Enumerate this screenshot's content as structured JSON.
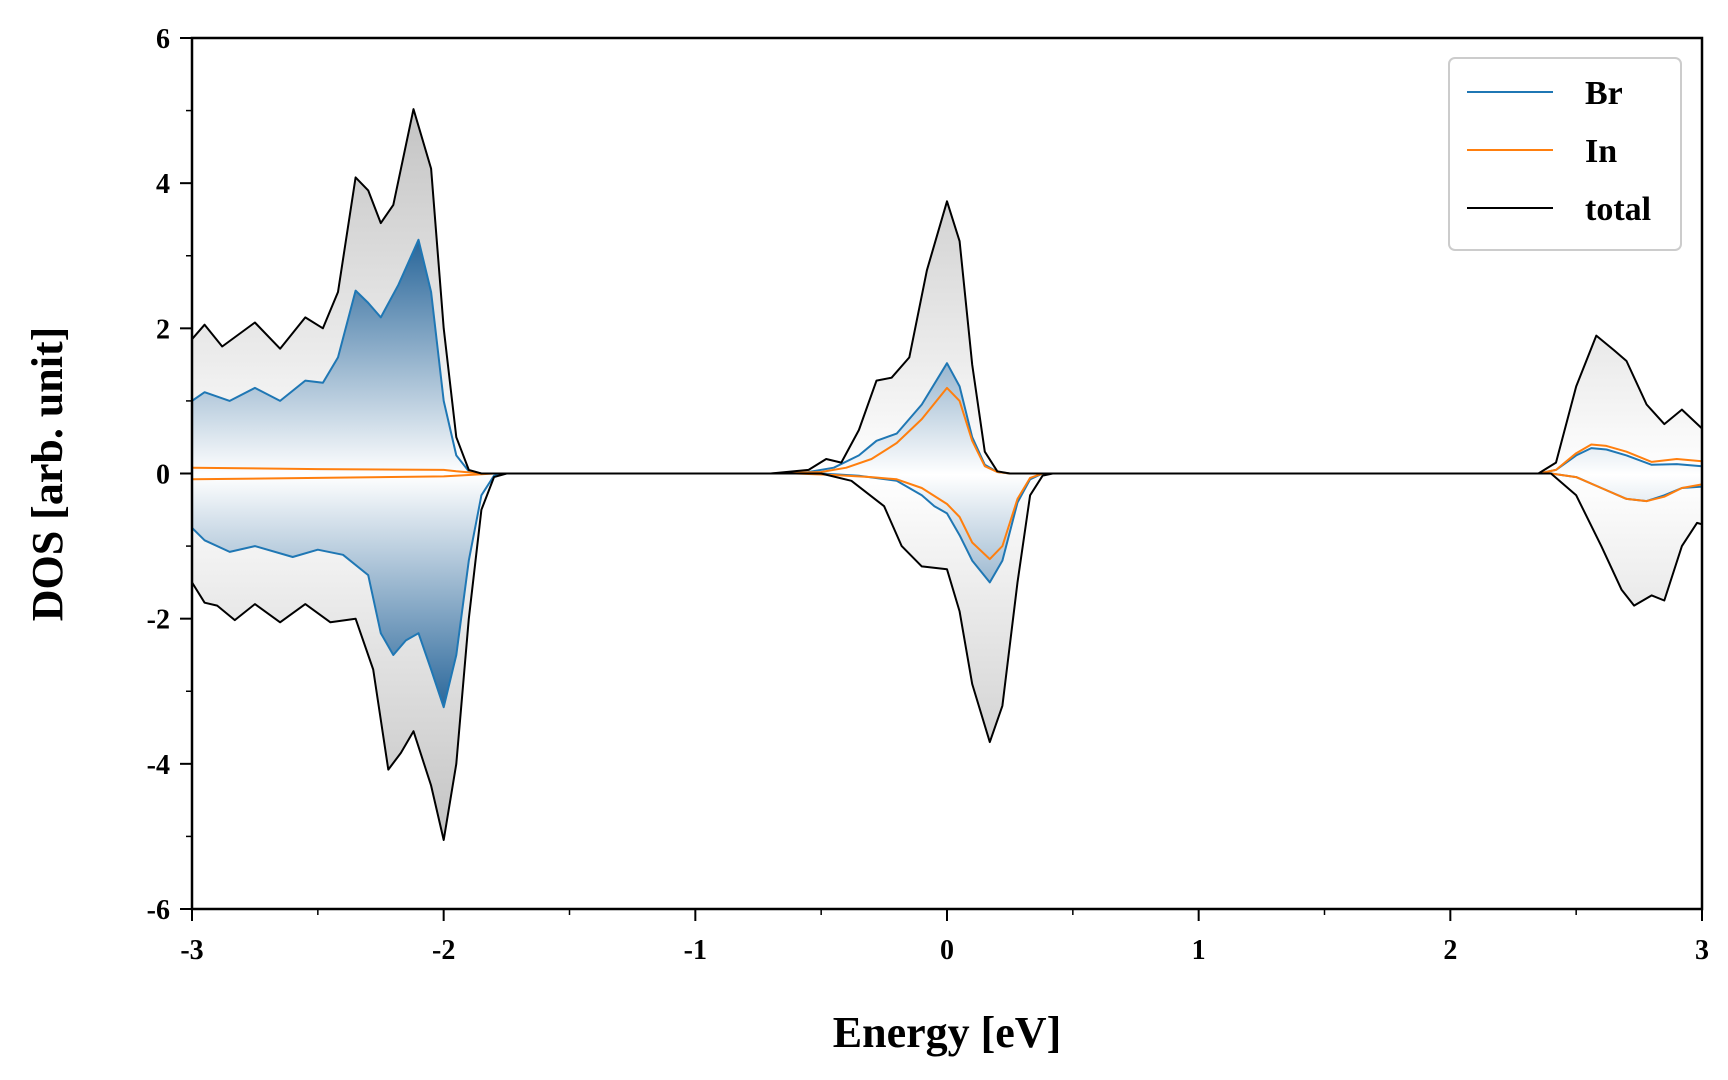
{
  "chart_data": {
    "type": "line",
    "xlabel": "Energy [eV]",
    "ylabel": "DOS [arb. unit]",
    "xlim": [
      -3,
      3
    ],
    "ylim": [
      -6,
      6
    ],
    "x_ticks": [
      -3,
      -2,
      -1,
      0,
      1,
      2,
      3
    ],
    "y_ticks": [
      -6,
      -4,
      -2,
      0,
      2,
      4,
      6
    ],
    "x_tick_labels": [
      "-3",
      "-2",
      "-1",
      "0",
      "1",
      "2",
      "3"
    ],
    "y_tick_labels": [
      "-6",
      "-4",
      "-2",
      "0",
      "2",
      "4",
      "6"
    ],
    "grid": false,
    "legend_position": "top-right",
    "series": [
      {
        "name": "Br",
        "color": "#1f77b4",
        "up": [
          [
            -3.0,
            1.0
          ],
          [
            -2.95,
            1.12
          ],
          [
            -2.85,
            1.0
          ],
          [
            -2.75,
            1.18
          ],
          [
            -2.65,
            1.0
          ],
          [
            -2.55,
            1.28
          ],
          [
            -2.48,
            1.25
          ],
          [
            -2.42,
            1.6
          ],
          [
            -2.35,
            2.52
          ],
          [
            -2.3,
            2.35
          ],
          [
            -2.25,
            2.15
          ],
          [
            -2.18,
            2.6
          ],
          [
            -2.1,
            3.22
          ],
          [
            -2.05,
            2.5
          ],
          [
            -2.0,
            1.0
          ],
          [
            -1.95,
            0.25
          ],
          [
            -1.9,
            0.03
          ],
          [
            -1.85,
            0.0
          ],
          [
            -0.7,
            0.0
          ],
          [
            -0.55,
            0.02
          ],
          [
            -0.45,
            0.08
          ],
          [
            -0.35,
            0.25
          ],
          [
            -0.28,
            0.45
          ],
          [
            -0.2,
            0.55
          ],
          [
            -0.1,
            0.95
          ],
          [
            0.0,
            1.52
          ],
          [
            0.05,
            1.2
          ],
          [
            0.1,
            0.5
          ],
          [
            0.15,
            0.12
          ],
          [
            0.2,
            0.02
          ],
          [
            0.25,
            0.0
          ],
          [
            2.35,
            0.0
          ],
          [
            2.42,
            0.05
          ],
          [
            2.5,
            0.25
          ],
          [
            2.56,
            0.35
          ],
          [
            2.62,
            0.33
          ],
          [
            2.7,
            0.25
          ],
          [
            2.8,
            0.12
          ],
          [
            2.9,
            0.13
          ],
          [
            3.0,
            0.1
          ]
        ],
        "down": [
          [
            -3.0,
            -0.75
          ],
          [
            -2.95,
            -0.92
          ],
          [
            -2.85,
            -1.08
          ],
          [
            -2.75,
            -1.0
          ],
          [
            -2.6,
            -1.15
          ],
          [
            -2.5,
            -1.05
          ],
          [
            -2.4,
            -1.12
          ],
          [
            -2.3,
            -1.4
          ],
          [
            -2.25,
            -2.2
          ],
          [
            -2.2,
            -2.5
          ],
          [
            -2.15,
            -2.3
          ],
          [
            -2.1,
            -2.2
          ],
          [
            -2.05,
            -2.7
          ],
          [
            -2.0,
            -3.22
          ],
          [
            -1.95,
            -2.5
          ],
          [
            -1.9,
            -1.2
          ],
          [
            -1.85,
            -0.3
          ],
          [
            -1.8,
            -0.03
          ],
          [
            -1.75,
            0.0
          ],
          [
            -0.5,
            0.0
          ],
          [
            -0.35,
            -0.03
          ],
          [
            -0.2,
            -0.1
          ],
          [
            -0.1,
            -0.3
          ],
          [
            -0.05,
            -0.45
          ],
          [
            0.0,
            -0.55
          ],
          [
            0.05,
            -0.85
          ],
          [
            0.1,
            -1.2
          ],
          [
            0.17,
            -1.5
          ],
          [
            0.22,
            -1.2
          ],
          [
            0.28,
            -0.4
          ],
          [
            0.33,
            -0.08
          ],
          [
            0.38,
            0.0
          ],
          [
            2.4,
            0.0
          ],
          [
            2.5,
            -0.05
          ],
          [
            2.6,
            -0.2
          ],
          [
            2.7,
            -0.35
          ],
          [
            2.78,
            -0.38
          ],
          [
            2.85,
            -0.3
          ],
          [
            2.92,
            -0.2
          ],
          [
            3.0,
            -0.18
          ]
        ]
      },
      {
        "name": "In",
        "color": "#ff7f0e",
        "up": [
          [
            -3.0,
            0.08
          ],
          [
            -2.5,
            0.06
          ],
          [
            -2.0,
            0.05
          ],
          [
            -1.95,
            0.03
          ],
          [
            -1.85,
            0.0
          ],
          [
            -0.7,
            0.0
          ],
          [
            -0.5,
            0.02
          ],
          [
            -0.4,
            0.08
          ],
          [
            -0.3,
            0.2
          ],
          [
            -0.2,
            0.42
          ],
          [
            -0.1,
            0.75
          ],
          [
            0.0,
            1.18
          ],
          [
            0.05,
            1.0
          ],
          [
            0.1,
            0.45
          ],
          [
            0.15,
            0.1
          ],
          [
            0.2,
            0.02
          ],
          [
            0.25,
            0.0
          ],
          [
            2.35,
            0.0
          ],
          [
            2.42,
            0.05
          ],
          [
            2.5,
            0.28
          ],
          [
            2.56,
            0.4
          ],
          [
            2.62,
            0.38
          ],
          [
            2.7,
            0.3
          ],
          [
            2.8,
            0.16
          ],
          [
            2.9,
            0.2
          ],
          [
            3.0,
            0.17
          ]
        ],
        "down": [
          [
            -3.0,
            -0.08
          ],
          [
            -2.5,
            -0.06
          ],
          [
            -2.0,
            -0.04
          ],
          [
            -1.9,
            -0.02
          ],
          [
            -1.8,
            0.0
          ],
          [
            -0.6,
            0.0
          ],
          [
            -0.45,
            -0.02
          ],
          [
            -0.3,
            -0.05
          ],
          [
            -0.2,
            -0.08
          ],
          [
            -0.1,
            -0.2
          ],
          [
            0.0,
            -0.42
          ],
          [
            0.05,
            -0.6
          ],
          [
            0.1,
            -0.95
          ],
          [
            0.17,
            -1.18
          ],
          [
            0.22,
            -1.0
          ],
          [
            0.28,
            -0.35
          ],
          [
            0.33,
            -0.06
          ],
          [
            0.38,
            0.0
          ],
          [
            2.4,
            0.0
          ],
          [
            2.5,
            -0.05
          ],
          [
            2.6,
            -0.2
          ],
          [
            2.7,
            -0.35
          ],
          [
            2.78,
            -0.38
          ],
          [
            2.85,
            -0.32
          ],
          [
            2.92,
            -0.2
          ],
          [
            3.0,
            -0.15
          ]
        ]
      },
      {
        "name": "total",
        "color": "#000000",
        "up": [
          [
            -3.0,
            1.85
          ],
          [
            -2.95,
            2.05
          ],
          [
            -2.88,
            1.75
          ],
          [
            -2.75,
            2.08
          ],
          [
            -2.65,
            1.72
          ],
          [
            -2.55,
            2.15
          ],
          [
            -2.48,
            2.0
          ],
          [
            -2.42,
            2.5
          ],
          [
            -2.35,
            4.08
          ],
          [
            -2.3,
            3.9
          ],
          [
            -2.25,
            3.45
          ],
          [
            -2.2,
            3.7
          ],
          [
            -2.12,
            5.02
          ],
          [
            -2.05,
            4.2
          ],
          [
            -2.0,
            2.0
          ],
          [
            -1.95,
            0.5
          ],
          [
            -1.9,
            0.05
          ],
          [
            -1.85,
            0.0
          ],
          [
            -0.7,
            0.0
          ],
          [
            -0.55,
            0.05
          ],
          [
            -0.48,
            0.2
          ],
          [
            -0.42,
            0.15
          ],
          [
            -0.35,
            0.6
          ],
          [
            -0.28,
            1.28
          ],
          [
            -0.22,
            1.32
          ],
          [
            -0.15,
            1.6
          ],
          [
            -0.08,
            2.8
          ],
          [
            0.0,
            3.75
          ],
          [
            0.05,
            3.2
          ],
          [
            0.1,
            1.5
          ],
          [
            0.15,
            0.3
          ],
          [
            0.2,
            0.03
          ],
          [
            0.25,
            0.0
          ],
          [
            2.35,
            0.0
          ],
          [
            2.42,
            0.15
          ],
          [
            2.5,
            1.2
          ],
          [
            2.58,
            1.9
          ],
          [
            2.65,
            1.7
          ],
          [
            2.7,
            1.55
          ],
          [
            2.78,
            0.95
          ],
          [
            2.85,
            0.68
          ],
          [
            2.92,
            0.88
          ],
          [
            3.0,
            0.62
          ]
        ],
        "down": [
          [
            -3.0,
            -1.5
          ],
          [
            -2.95,
            -1.78
          ],
          [
            -2.9,
            -1.82
          ],
          [
            -2.83,
            -2.02
          ],
          [
            -2.75,
            -1.8
          ],
          [
            -2.65,
            -2.05
          ],
          [
            -2.55,
            -1.8
          ],
          [
            -2.45,
            -2.05
          ],
          [
            -2.35,
            -2.0
          ],
          [
            -2.28,
            -2.7
          ],
          [
            -2.22,
            -4.08
          ],
          [
            -2.17,
            -3.85
          ],
          [
            -2.12,
            -3.55
          ],
          [
            -2.05,
            -4.3
          ],
          [
            -2.0,
            -5.05
          ],
          [
            -1.95,
            -4.0
          ],
          [
            -1.9,
            -2.0
          ],
          [
            -1.85,
            -0.5
          ],
          [
            -1.8,
            -0.05
          ],
          [
            -1.75,
            0.0
          ],
          [
            -0.5,
            0.0
          ],
          [
            -0.38,
            -0.1
          ],
          [
            -0.25,
            -0.45
          ],
          [
            -0.18,
            -1.0
          ],
          [
            -0.1,
            -1.28
          ],
          [
            0.0,
            -1.32
          ],
          [
            0.05,
            -1.9
          ],
          [
            0.1,
            -2.9
          ],
          [
            0.17,
            -3.7
          ],
          [
            0.22,
            -3.2
          ],
          [
            0.28,
            -1.5
          ],
          [
            0.33,
            -0.3
          ],
          [
            0.38,
            -0.03
          ],
          [
            0.42,
            0.0
          ],
          [
            2.4,
            0.0
          ],
          [
            2.5,
            -0.3
          ],
          [
            2.6,
            -1.0
          ],
          [
            2.68,
            -1.6
          ],
          [
            2.73,
            -1.82
          ],
          [
            2.8,
            -1.68
          ],
          [
            2.85,
            -1.75
          ],
          [
            2.92,
            -1.0
          ],
          [
            2.98,
            -0.68
          ],
          [
            3.0,
            -0.7
          ]
        ]
      }
    ]
  }
}
